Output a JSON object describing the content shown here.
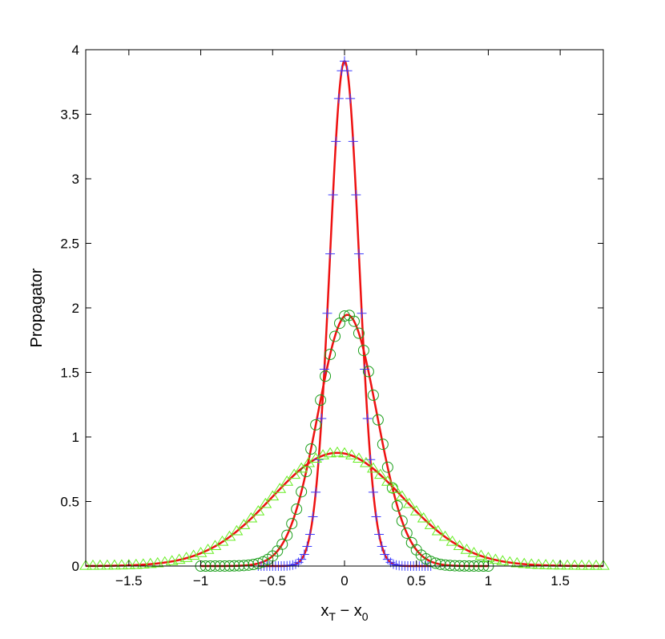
{
  "chart_data": {
    "type": "line",
    "title": "",
    "xlabel": {
      "main": "x",
      "sub1": "T",
      "minus": " − ",
      "main2": "x",
      "sub2": "0"
    },
    "ylabel": "Propagator",
    "xlim": [
      -1.8,
      1.8
    ],
    "ylim": [
      0,
      4
    ],
    "xticks": [
      -1.5,
      -1,
      -0.5,
      0,
      0.5,
      1,
      1.5
    ],
    "xtick_labels": [
      "−1.5",
      "−1",
      "−0.5",
      "0",
      "0.5",
      "1",
      "1.5"
    ],
    "yticks": [
      0,
      0.5,
      1,
      1.5,
      2,
      2.5,
      3,
      3.5,
      4
    ],
    "ytick_labels": [
      "0",
      "0.5",
      "1",
      "1.5",
      "2",
      "2.5",
      "3",
      "3.5",
      "4"
    ],
    "grid": false,
    "legend": "none",
    "series": [
      {
        "marker": "plus",
        "color": "#3b3bff",
        "mu": 0.0,
        "sigma": 0.102,
        "xrange": [
          -0.6,
          0.6
        ],
        "n": 61
      },
      {
        "marker": "circle",
        "color": "#1a9e1a",
        "mu": 0.02,
        "sigma": 0.205,
        "xrange": [
          -1.0,
          1.0
        ],
        "n": 61
      },
      {
        "marker": "triangle",
        "color": "#66ee22",
        "mu": -0.05,
        "sigma": 0.455,
        "xrange": [
          -1.8,
          1.8
        ],
        "n": 73
      }
    ],
    "fit_lines": [
      {
        "color": "#ee1111",
        "mu": 0.0,
        "sigma": 0.102,
        "xrange": [
          -0.6,
          0.6
        ]
      },
      {
        "color": "#ee1111",
        "mu": 0.02,
        "sigma": 0.205,
        "xrange": [
          -1.0,
          1.0
        ]
      },
      {
        "color": "#ee1111",
        "mu": -0.05,
        "sigma": 0.455,
        "xrange": [
          -1.8,
          1.8
        ]
      }
    ],
    "dashed_lines": [
      {
        "color": "#8b1a1a",
        "mu": 0.02,
        "sigma": 0.205,
        "xrange": [
          -1.0,
          1.0
        ]
      },
      {
        "color": "#8b1a1a",
        "mu": -0.05,
        "sigma": 0.455,
        "xrange": [
          -1.8,
          1.8
        ]
      }
    ]
  }
}
